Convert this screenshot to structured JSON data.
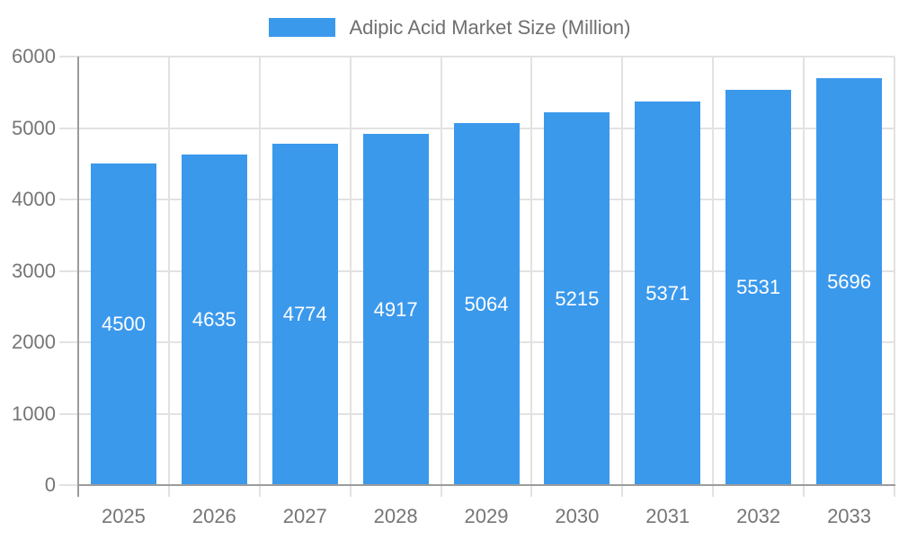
{
  "legend": {
    "label": "Adipic Acid Market Size (Million)"
  },
  "colors": {
    "background": "#FFFFFF",
    "bar": "#3B99EC",
    "grid": "#E2E2E2",
    "axis": "#9B9B9B",
    "tick_label": "#757575",
    "legend_label": "#6F6F6F",
    "bar_value_label": "#FFFFFF"
  },
  "chart_data": {
    "type": "bar",
    "title": "Adipic Acid Market Size (Million)",
    "categories": [
      "2025",
      "2026",
      "2027",
      "2028",
      "2029",
      "2030",
      "2031",
      "2032",
      "2033"
    ],
    "values": [
      4500,
      4635,
      4774,
      4917,
      5064,
      5215,
      5371,
      5531,
      5696
    ],
    "series": [
      {
        "name": "Adipic Acid Market Size (Million)",
        "values": [
          4500,
          4635,
          4774,
          4917,
          5064,
          5215,
          5371,
          5531,
          5696
        ]
      }
    ],
    "xlabel": "",
    "ylabel": "",
    "ylim": [
      0,
      6000
    ],
    "y_ticks": [
      0,
      1000,
      2000,
      3000,
      4000,
      5000,
      6000
    ],
    "grid": true,
    "legend_position": "top-center",
    "value_label_position": "inside-center"
  }
}
